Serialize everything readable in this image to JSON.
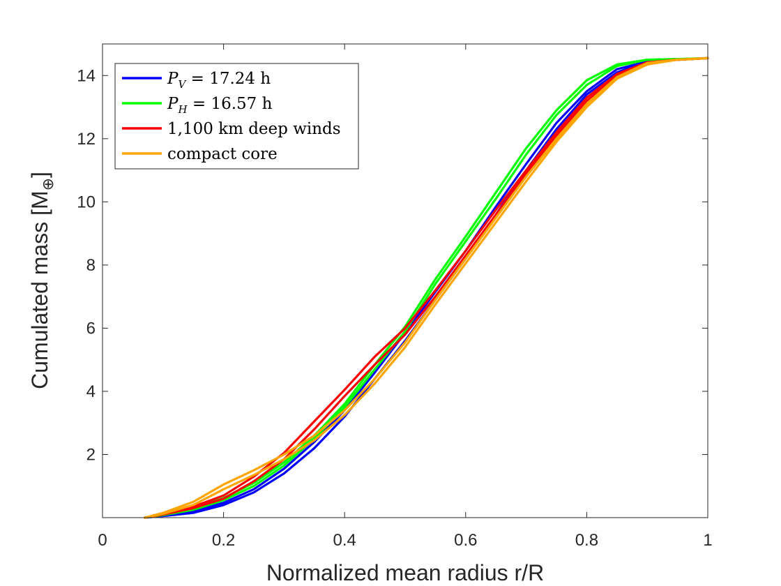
{
  "chart_data": {
    "type": "line",
    "title": "",
    "xlabel": "Normalized mean radius r/R",
    "ylabel": "Cumulated mass [M",
    "ylabel_subscript": "⊕",
    "ylabel_close": "]",
    "xlim": [
      0,
      1
    ],
    "ylim": [
      0,
      15
    ],
    "xticks": [
      0,
      0.2,
      0.4,
      0.6,
      0.8,
      1
    ],
    "xtick_labels": [
      "0",
      "0.2",
      "0.4",
      "0.6",
      "0.8",
      "1"
    ],
    "yticks": [
      2,
      4,
      6,
      8,
      10,
      12,
      14
    ],
    "ytick_labels": [
      "2",
      "4",
      "6",
      "8",
      "10",
      "12",
      "14"
    ],
    "grid": false,
    "legend_position": "top-left",
    "legend": [
      {
        "label": "P",
        "sub": "V",
        "rest": " = 17.24 h",
        "color": "#0000ff"
      },
      {
        "label": "P",
        "sub": "H",
        "rest": " = 16.57 h",
        "color": "#00ff00"
      },
      {
        "label": "1,100 km deep winds",
        "sub": "",
        "rest": "",
        "color": "#ff0000"
      },
      {
        "label": "compact core",
        "sub": "",
        "rest": "",
        "color": "#ffa500"
      }
    ],
    "series": [
      {
        "name": "P_V = 17.24 h",
        "color": "#0000ff",
        "curves": [
          [
            [
              0.07,
              0
            ],
            [
              0.1,
              0.05
            ],
            [
              0.15,
              0.15
            ],
            [
              0.2,
              0.4
            ],
            [
              0.25,
              0.8
            ],
            [
              0.3,
              1.4
            ],
            [
              0.35,
              2.2
            ],
            [
              0.4,
              3.2
            ],
            [
              0.45,
              4.4
            ],
            [
              0.5,
              5.6
            ],
            [
              0.55,
              6.9
            ],
            [
              0.6,
              8.2
            ],
            [
              0.65,
              9.6
            ],
            [
              0.7,
              11.0
            ],
            [
              0.75,
              12.3
            ],
            [
              0.8,
              13.4
            ],
            [
              0.85,
              14.1
            ],
            [
              0.9,
              14.45
            ],
            [
              0.95,
              14.5
            ],
            [
              1.0,
              14.55
            ]
          ],
          [
            [
              0.07,
              0
            ],
            [
              0.1,
              0.07
            ],
            [
              0.15,
              0.2
            ],
            [
              0.2,
              0.47
            ],
            [
              0.25,
              0.9
            ],
            [
              0.3,
              1.55
            ],
            [
              0.35,
              2.4
            ],
            [
              0.4,
              3.4
            ],
            [
              0.45,
              4.6
            ],
            [
              0.5,
              5.85
            ],
            [
              0.55,
              7.15
            ],
            [
              0.6,
              8.45
            ],
            [
              0.65,
              9.85
            ],
            [
              0.7,
              11.2
            ],
            [
              0.75,
              12.5
            ],
            [
              0.8,
              13.5
            ],
            [
              0.85,
              14.2
            ],
            [
              0.9,
              14.45
            ],
            [
              0.95,
              14.5
            ],
            [
              1.0,
              14.55
            ]
          ]
        ]
      },
      {
        "name": "P_H = 16.57 h",
        "color": "#00ff00",
        "curves": [
          [
            [
              0.07,
              0
            ],
            [
              0.1,
              0.08
            ],
            [
              0.15,
              0.25
            ],
            [
              0.2,
              0.55
            ],
            [
              0.25,
              1.0
            ],
            [
              0.3,
              1.65
            ],
            [
              0.35,
              2.5
            ],
            [
              0.4,
              3.5
            ],
            [
              0.45,
              4.7
            ],
            [
              0.5,
              5.9
            ],
            [
              0.55,
              7.4
            ],
            [
              0.6,
              8.75
            ],
            [
              0.65,
              10.1
            ],
            [
              0.7,
              11.5
            ],
            [
              0.75,
              12.75
            ],
            [
              0.8,
              13.7
            ],
            [
              0.85,
              14.3
            ],
            [
              0.9,
              14.5
            ],
            [
              0.95,
              14.52
            ],
            [
              1.0,
              14.55
            ]
          ],
          [
            [
              0.07,
              0
            ],
            [
              0.1,
              0.1
            ],
            [
              0.15,
              0.3
            ],
            [
              0.2,
              0.62
            ],
            [
              0.25,
              1.1
            ],
            [
              0.3,
              1.75
            ],
            [
              0.35,
              2.6
            ],
            [
              0.4,
              3.6
            ],
            [
              0.45,
              4.85
            ],
            [
              0.5,
              6.05
            ],
            [
              0.55,
              7.55
            ],
            [
              0.6,
              8.9
            ],
            [
              0.65,
              10.3
            ],
            [
              0.7,
              11.7
            ],
            [
              0.75,
              12.9
            ],
            [
              0.8,
              13.85
            ],
            [
              0.85,
              14.35
            ],
            [
              0.9,
              14.5
            ],
            [
              0.95,
              14.52
            ],
            [
              1.0,
              14.55
            ]
          ]
        ]
      },
      {
        "name": "1,100 km deep winds",
        "color": "#ff0000",
        "curves": [
          [
            [
              0.07,
              0
            ],
            [
              0.1,
              0.1
            ],
            [
              0.15,
              0.3
            ],
            [
              0.2,
              0.6
            ],
            [
              0.25,
              1.15
            ],
            [
              0.3,
              1.85
            ],
            [
              0.35,
              2.8
            ],
            [
              0.4,
              3.85
            ],
            [
              0.45,
              4.85
            ],
            [
              0.5,
              5.8
            ],
            [
              0.55,
              7.0
            ],
            [
              0.6,
              8.3
            ],
            [
              0.65,
              9.6
            ],
            [
              0.7,
              10.9
            ],
            [
              0.75,
              12.1
            ],
            [
              0.8,
              13.2
            ],
            [
              0.85,
              14.0
            ],
            [
              0.9,
              14.4
            ],
            [
              0.95,
              14.5
            ],
            [
              1.0,
              14.55
            ]
          ],
          [
            [
              0.07,
              0
            ],
            [
              0.1,
              0.12
            ],
            [
              0.15,
              0.35
            ],
            [
              0.2,
              0.7
            ],
            [
              0.25,
              1.3
            ],
            [
              0.3,
              2.05
            ],
            [
              0.35,
              3.05
            ],
            [
              0.4,
              4.05
            ],
            [
              0.45,
              5.1
            ],
            [
              0.5,
              6.0
            ],
            [
              0.55,
              7.2
            ],
            [
              0.6,
              8.45
            ],
            [
              0.65,
              9.75
            ],
            [
              0.7,
              11.0
            ],
            [
              0.75,
              12.2
            ],
            [
              0.8,
              13.3
            ],
            [
              0.85,
              14.05
            ],
            [
              0.9,
              14.42
            ],
            [
              0.95,
              14.5
            ],
            [
              1.0,
              14.55
            ]
          ]
        ]
      },
      {
        "name": "compact core",
        "color": "#ffa500",
        "curves": [
          [
            [
              0.07,
              0
            ],
            [
              0.1,
              0.15
            ],
            [
              0.15,
              0.5
            ],
            [
              0.2,
              1.05
            ],
            [
              0.25,
              1.5
            ],
            [
              0.3,
              2.0
            ],
            [
              0.35,
              2.6
            ],
            [
              0.4,
              3.4
            ],
            [
              0.45,
              4.4
            ],
            [
              0.5,
              5.55
            ],
            [
              0.55,
              6.9
            ],
            [
              0.6,
              8.2
            ],
            [
              0.65,
              9.5
            ],
            [
              0.7,
              10.8
            ],
            [
              0.75,
              12.0
            ],
            [
              0.8,
              13.1
            ],
            [
              0.85,
              13.95
            ],
            [
              0.9,
              14.4
            ],
            [
              0.95,
              14.5
            ],
            [
              1.0,
              14.55
            ]
          ],
          [
            [
              0.07,
              0
            ],
            [
              0.1,
              0.12
            ],
            [
              0.15,
              0.4
            ],
            [
              0.2,
              0.9
            ],
            [
              0.25,
              1.35
            ],
            [
              0.3,
              1.85
            ],
            [
              0.35,
              2.45
            ],
            [
              0.4,
              3.25
            ],
            [
              0.45,
              4.25
            ],
            [
              0.5,
              5.4
            ],
            [
              0.55,
              6.75
            ],
            [
              0.6,
              8.05
            ],
            [
              0.65,
              9.35
            ],
            [
              0.7,
              10.65
            ],
            [
              0.75,
              11.9
            ],
            [
              0.8,
              13.0
            ],
            [
              0.85,
              13.9
            ],
            [
              0.9,
              14.35
            ],
            [
              0.95,
              14.5
            ],
            [
              1.0,
              14.55
            ]
          ]
        ]
      }
    ]
  }
}
